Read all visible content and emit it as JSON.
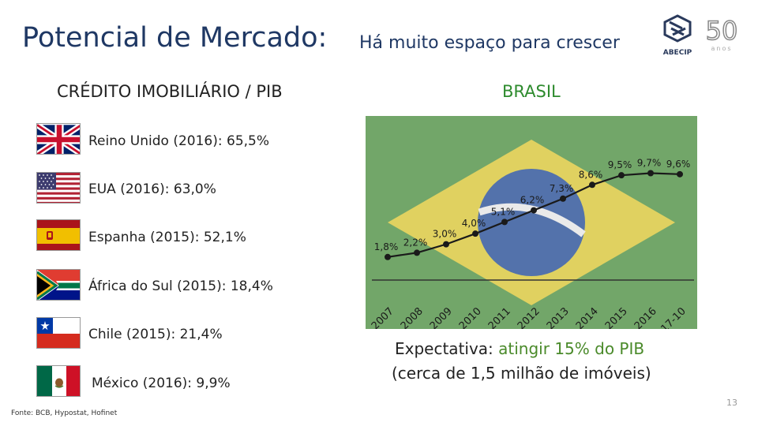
{
  "title": {
    "main": "Potencial de Mercado:",
    "sub": "Há muito espaço para crescer"
  },
  "logo": {
    "brand": "ABECIP",
    "anniversary": "50",
    "anniversary_word": "anos"
  },
  "left_heading": "CRÉDITO IMOBILIÁRIO / PIB",
  "right_heading": "BRASIL",
  "countries": [
    {
      "label": "Reino Unido (2016): 65,5%",
      "flag": "uk-flag-icon"
    },
    {
      "label": "EUA (2016): 63,0%",
      "flag": "usa-flag-icon"
    },
    {
      "label": "Espanha (2015): 52,1%",
      "flag": "spain-flag-icon"
    },
    {
      "label": "África do Sul (2015): 18,4%",
      "flag": "south-africa-flag-icon"
    },
    {
      "label": "Chile (2015): 21,4%",
      "flag": "chile-flag-icon"
    },
    {
      "label": "México (2016): 9,9%",
      "flag": "mexico-flag-icon"
    }
  ],
  "chart_data": {
    "type": "line",
    "title": "",
    "xlabel": "",
    "ylabel": "",
    "categories": [
      "2007",
      "2008",
      "2009",
      "2010",
      "2011",
      "2012",
      "2013",
      "2014",
      "2015",
      "2016",
      "2017-10"
    ],
    "series": [
      {
        "values": [
          1.8,
          2.2,
          3.0,
          4.0,
          5.1,
          6.2,
          7.3,
          8.6,
          9.5,
          9.7,
          9.6
        ],
        "labels": [
          "1,8%",
          "2,2%",
          "3,0%",
          "4,0%",
          "5,1%",
          "6,2%",
          "7,3%",
          "8,6%",
          "9,5%",
          "9,7%",
          "9,6%"
        ]
      }
    ],
    "ylim": [
      0,
      11
    ],
    "grid": false,
    "line_color": "#1a1a1a",
    "background": "Brazilian flag"
  },
  "expectation": {
    "prefix": "Expectativa: ",
    "highlight": "atingir 15% do PIB",
    "line2": "(cerca de 1,5 milhão de imóveis)"
  },
  "page_number": "13",
  "source": "Fonte: BCB, Hypostat, Hofinet",
  "colors": {
    "title": "#1f3864",
    "brasil": "#2e8b2e",
    "highlight": "#4a8a2a"
  }
}
